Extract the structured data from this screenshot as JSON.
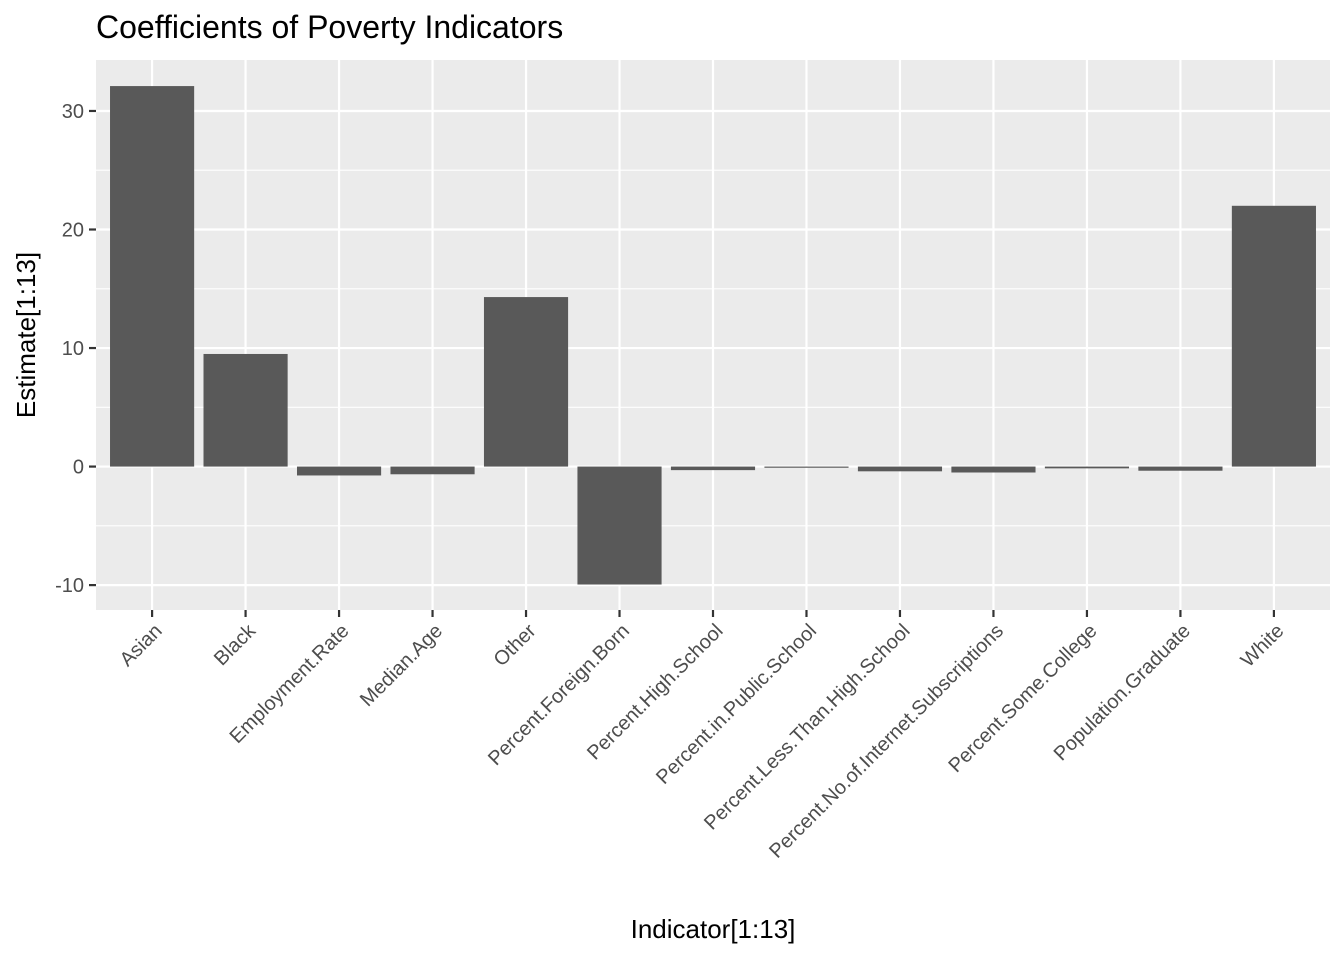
{
  "chart_data": {
    "type": "bar",
    "title": "Coefficients of Poverty Indicators",
    "xlabel": "Indicator[1:13]",
    "ylabel": "Estimate[1:13]",
    "categories": [
      "Asian",
      "Black",
      "Employment.Rate",
      "Median.Age",
      "Other",
      "Percent.Foreign.Born",
      "Percent.High.School",
      "Percent.in.Public.School",
      "Percent.Less.Than.High.School",
      "Percent.No.of.Internet.Subscriptions",
      "Percent.Some.College",
      "Population.Graduate",
      "White"
    ],
    "values": [
      32.1,
      9.5,
      -0.75,
      -0.65,
      14.3,
      -9.95,
      -0.3,
      -0.1,
      -0.4,
      -0.5,
      -0.15,
      -0.35,
      22.0
    ],
    "ylim": [
      -12.1,
      34.3
    ],
    "yticks": [
      -10,
      0,
      10,
      20,
      30
    ],
    "ytick_labels": [
      "-10",
      "0",
      "10",
      "20",
      "30"
    ],
    "grid": true,
    "colors": {
      "panel": "#ebebeb",
      "bar": "#595959",
      "grid": "#ffffff",
      "tick_text": "#4d4d4d"
    }
  }
}
